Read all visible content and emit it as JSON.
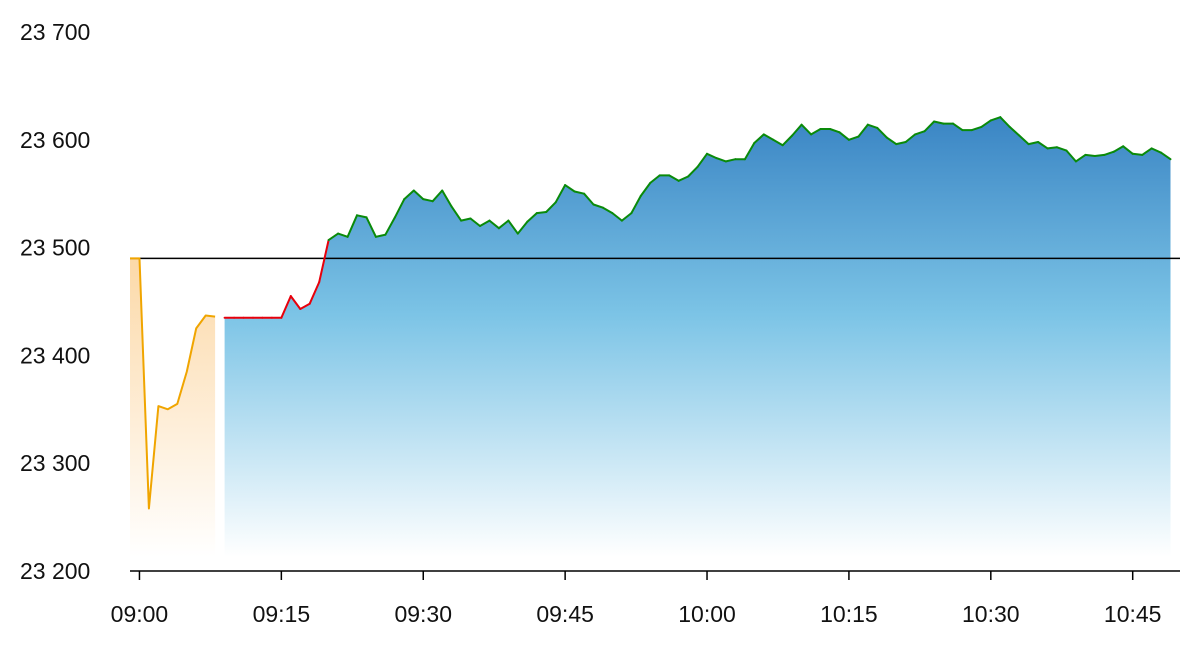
{
  "chart_data": {
    "type": "area",
    "title": "",
    "xlabel": "",
    "ylabel": "",
    "ylim": [
      23200,
      23700
    ],
    "y_ticks": [
      {
        "value": 23200,
        "label": "23 200"
      },
      {
        "value": 23300,
        "label": "23 300"
      },
      {
        "value": 23400,
        "label": "23 400"
      },
      {
        "value": 23500,
        "label": "23 500"
      },
      {
        "value": 23600,
        "label": "23 600"
      },
      {
        "value": 23700,
        "label": "23 700"
      }
    ],
    "xlim": [
      "08:59",
      "10:50"
    ],
    "x_ticks": [
      "09:00",
      "09:15",
      "09:30",
      "09:45",
      "10:00",
      "10:15",
      "10:30",
      "10:45"
    ],
    "reference_line": 23490,
    "grid": false,
    "legend": "none",
    "colors": {
      "pre_open_line": "#f0a500",
      "pre_open_fill": "#fde6c4",
      "below_ref_line": "#e8000b",
      "above_ref_line": "#0a8a0a",
      "area_top": "#3a85c4",
      "area_bottom": "#ffffff",
      "reference": "#000000"
    },
    "series": [
      {
        "segment": "pre-open",
        "x": [
          "08:59",
          "09:00",
          "09:01",
          "09:02",
          "09:03",
          "09:04",
          "09:05",
          "09:06",
          "09:07",
          "09:08"
        ],
        "y": [
          23490,
          23490,
          23258,
          23353,
          23350,
          23355,
          23385,
          23425,
          23437,
          23436
        ]
      },
      {
        "segment": "session",
        "x": [
          "09:09",
          "09:10",
          "09:11",
          "09:12",
          "09:13",
          "09:14",
          "09:15",
          "09:16",
          "09:17",
          "09:18",
          "09:19",
          "09:20",
          "09:21",
          "09:22",
          "09:23",
          "09:24",
          "09:25",
          "09:26",
          "09:27",
          "09:28",
          "09:29",
          "09:30",
          "09:31",
          "09:32",
          "09:33",
          "09:34",
          "09:35",
          "09:36",
          "09:37",
          "09:38",
          "09:39",
          "09:40",
          "09:41",
          "09:42",
          "09:43",
          "09:44",
          "09:45",
          "09:46",
          "09:47",
          "09:48",
          "09:49",
          "09:50",
          "09:51",
          "09:52",
          "09:53",
          "09:54",
          "09:55",
          "09:56",
          "09:57",
          "09:58",
          "09:59",
          "10:00",
          "10:01",
          "10:02",
          "10:03",
          "10:04",
          "10:05",
          "10:06",
          "10:07",
          "10:08",
          "10:09",
          "10:10",
          "10:11",
          "10:12",
          "10:13",
          "10:14",
          "10:15",
          "10:16",
          "10:17",
          "10:18",
          "10:19",
          "10:20",
          "10:21",
          "10:22",
          "10:23",
          "10:24",
          "10:25",
          "10:26",
          "10:27",
          "10:28",
          "10:29",
          "10:30",
          "10:31",
          "10:32",
          "10:33",
          "10:34",
          "10:35",
          "10:36",
          "10:37",
          "10:38",
          "10:39",
          "10:40",
          "10:41",
          "10:42",
          "10:43",
          "10:44",
          "10:45",
          "10:46",
          "10:47",
          "10:48",
          "10:49"
        ],
        "y": [
          23435,
          23435,
          23435,
          23435,
          23435,
          23435,
          23435,
          23455,
          23443,
          23448,
          23468,
          23507,
          23513,
          23510,
          23530,
          23528,
          23510,
          23512,
          23528,
          23545,
          23553,
          23545,
          23543,
          23553,
          23538,
          23525,
          23527,
          23520,
          23525,
          23518,
          23525,
          23513,
          23524,
          23532,
          23533,
          23542,
          23558,
          23552,
          23550,
          23540,
          23537,
          23532,
          23525,
          23532,
          23548,
          23560,
          23567,
          23567,
          23562,
          23566,
          23575,
          23587,
          23583,
          23580,
          23582,
          23582,
          23597,
          23605,
          23600,
          23595,
          23604,
          23614,
          23605,
          23610,
          23610,
          23607,
          23600,
          23603,
          23614,
          23611,
          23602,
          23596,
          23598,
          23605,
          23608,
          23617,
          23615,
          23615,
          23609,
          23609,
          23612,
          23618,
          23621,
          23612,
          23604,
          23596,
          23598,
          23592,
          23593,
          23590,
          23580,
          23586,
          23585,
          23586,
          23589,
          23594,
          23587,
          23586,
          23592,
          23588,
          23582
        ]
      }
    ]
  }
}
